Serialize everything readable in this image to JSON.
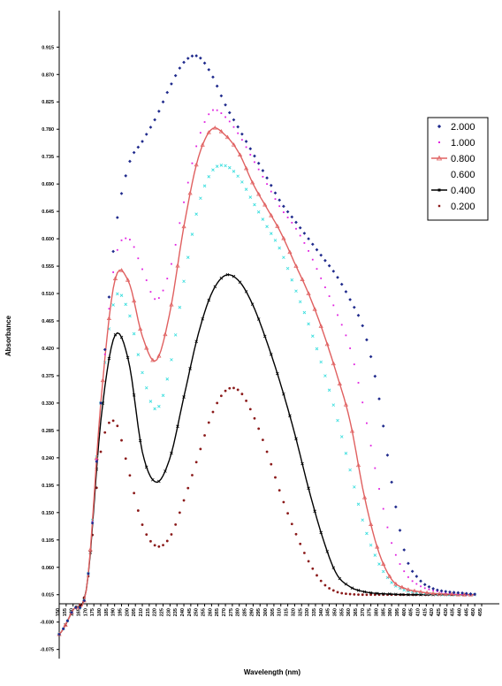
{
  "chart_data": {
    "type": "line",
    "title": "",
    "xlabel": "Wavelength (nm)",
    "ylabel": "Absorbance",
    "ylim": [
      -0.09,
      0.975
    ],
    "y_ticks": [
      "0.915",
      "0.870",
      "0.825",
      "0.780",
      "0.735",
      "0.690",
      "0.645",
      "0.600",
      "0.555",
      "0.510",
      "0.465",
      "0.420",
      "0.375",
      "0.330",
      "0.285",
      "0.240",
      "0.195",
      "0.150",
      "0.105",
      "0.060",
      "0.015",
      "-0.030",
      "-0.075"
    ],
    "y_tick_values": [
      0.915,
      0.87,
      0.825,
      0.78,
      0.735,
      0.69,
      0.645,
      0.6,
      0.555,
      0.51,
      0.465,
      0.42,
      0.375,
      0.33,
      0.285,
      0.24,
      0.195,
      0.15,
      0.105,
      0.06,
      0.015,
      -0.03,
      -0.075
    ],
    "x_ticks": [
      "150",
      "155",
      "160",
      "165",
      "170",
      "175",
      "180",
      "185",
      "190",
      "195",
      "200",
      "205",
      "210",
      "215",
      "220",
      "225",
      "230",
      "235",
      "240",
      "245",
      "250",
      "255",
      "260",
      "265",
      "270",
      "275",
      "280",
      "285",
      "290",
      "295",
      "300",
      "305",
      "310",
      "315",
      "320",
      "325",
      "330",
      "335",
      "340",
      "345",
      "350",
      "355",
      "360",
      "365",
      "370",
      "375",
      "380",
      "385",
      "390",
      "395",
      "400",
      "405",
      "410",
      "415",
      "420",
      "425",
      "430",
      "435",
      "440",
      "445",
      "450",
      "455"
    ],
    "x": [
      150,
      160,
      170,
      180,
      190,
      200,
      210,
      220,
      230,
      240,
      250,
      260,
      270,
      280,
      290,
      300,
      310,
      320,
      330,
      340,
      350,
      360,
      370,
      380,
      390,
      400,
      410,
      420,
      430,
      440,
      450
    ],
    "series": [
      {
        "name": "2.000",
        "color": "#1f2a8c",
        "marker": "diamond",
        "values": [
          -0.05,
          -0.01,
          0.03,
          0.33,
          0.6,
          0.72,
          0.76,
          0.8,
          0.85,
          0.89,
          0.9,
          0.87,
          0.82,
          0.78,
          0.74,
          0.7,
          0.66,
          0.63,
          0.6,
          0.57,
          0.54,
          0.5,
          0.45,
          0.35,
          0.2,
          0.08,
          0.04,
          0.025,
          0.02,
          0.018,
          0.016
        ]
      },
      {
        "name": "1.000",
        "color": "#e020e0",
        "marker": "square",
        "values": [
          -0.05,
          -0.01,
          0.03,
          0.33,
          0.56,
          0.6,
          0.55,
          0.5,
          0.55,
          0.66,
          0.76,
          0.81,
          0.8,
          0.77,
          0.73,
          0.69,
          0.65,
          0.62,
          0.58,
          0.53,
          0.48,
          0.42,
          0.32,
          0.2,
          0.1,
          0.05,
          0.03,
          0.022,
          0.018,
          0.016,
          0.015
        ]
      },
      {
        "name": "0.800",
        "color": "#e06060",
        "marker": "triangle",
        "values": [
          -0.05,
          -0.01,
          0.03,
          0.33,
          0.53,
          0.53,
          0.44,
          0.4,
          0.48,
          0.62,
          0.73,
          0.78,
          0.77,
          0.74,
          0.69,
          0.65,
          0.61,
          0.56,
          0.51,
          0.45,
          0.38,
          0.3,
          0.18,
          0.09,
          0.04,
          0.025,
          0.02,
          0.017,
          0.016,
          0.015,
          0.015
        ]
      },
      {
        "name": "0.600",
        "color": "#33dddd",
        "marker": "x",
        "values": [
          -0.05,
          -0.01,
          0.03,
          0.33,
          0.5,
          0.48,
          0.38,
          0.32,
          0.39,
          0.53,
          0.65,
          0.71,
          0.72,
          0.7,
          0.66,
          0.62,
          0.58,
          0.52,
          0.46,
          0.39,
          0.31,
          0.22,
          0.13,
          0.07,
          0.035,
          0.022,
          0.018,
          0.016,
          0.015,
          0.015,
          0.015
        ]
      },
      {
        "name": "0.400",
        "color": "#000000",
        "marker": "x",
        "values": [
          -0.05,
          -0.01,
          0.03,
          0.3,
          0.44,
          0.4,
          0.25,
          0.2,
          0.24,
          0.34,
          0.44,
          0.51,
          0.54,
          0.53,
          0.49,
          0.43,
          0.36,
          0.28,
          0.19,
          0.11,
          0.05,
          0.028,
          0.02,
          0.017,
          0.016,
          0.015,
          0.015,
          0.015,
          0.015,
          0.015,
          0.015
        ]
      },
      {
        "name": "0.200",
        "color": "#8b1a1a",
        "marker": "circle",
        "values": [
          -0.05,
          -0.01,
          0.03,
          0.25,
          0.3,
          0.22,
          0.13,
          0.095,
          0.11,
          0.17,
          0.24,
          0.31,
          0.35,
          0.35,
          0.31,
          0.25,
          0.18,
          0.12,
          0.07,
          0.035,
          0.02,
          0.016,
          0.015,
          0.015,
          0.015,
          0.015,
          0.015,
          0.015,
          0.015,
          0.015,
          0.015
        ]
      }
    ],
    "legend_position": "right",
    "grid": false
  }
}
